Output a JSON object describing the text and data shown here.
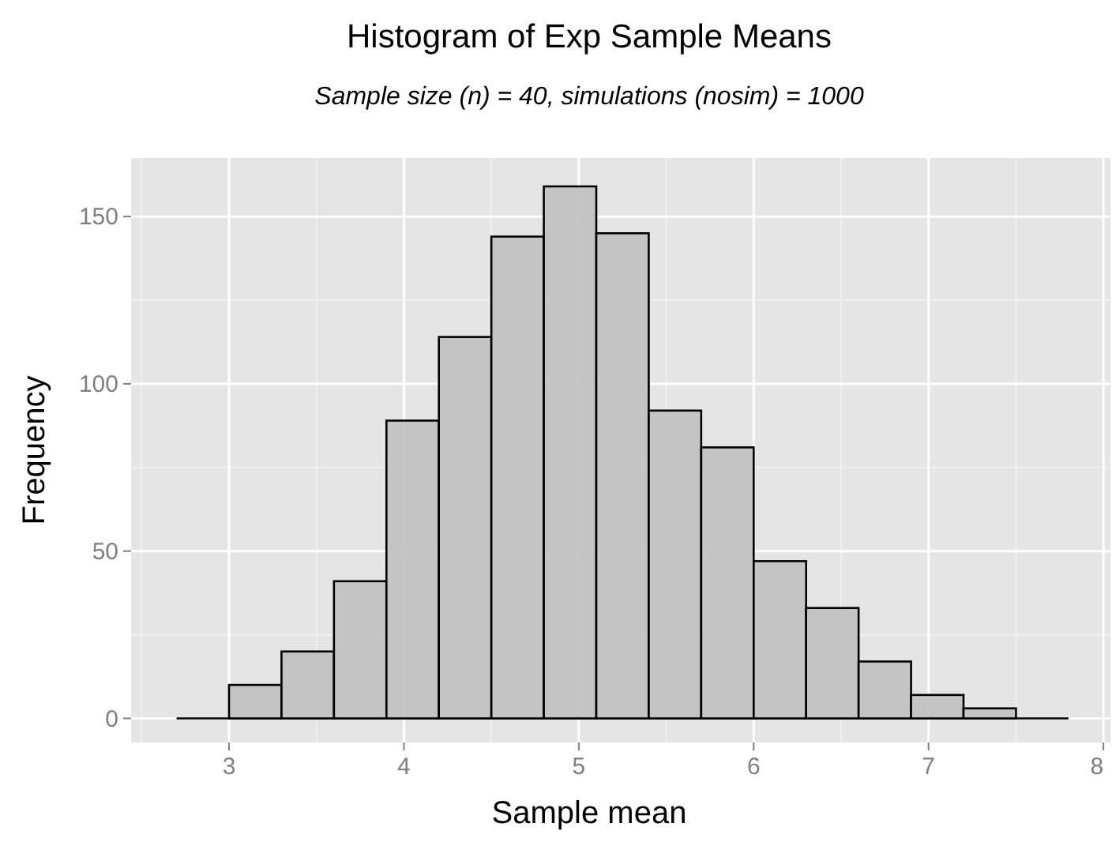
{
  "chart_data": {
    "type": "histogram",
    "title": "Histogram of Exp Sample Means",
    "subtitle": "Sample size (n) = 40, simulations (nosim) = 1000",
    "xlabel": "Sample mean",
    "ylabel": "Frequency",
    "bins": [
      2.7,
      3.0,
      3.3,
      3.6,
      3.9,
      4.2,
      4.5,
      4.8,
      5.1,
      5.4,
      5.7,
      6.0,
      6.3,
      6.6,
      6.9,
      7.2,
      7.5,
      7.8
    ],
    "values": [
      0,
      10,
      20,
      41,
      89,
      114,
      144,
      159,
      145,
      92,
      81,
      47,
      33,
      17,
      7,
      3,
      0
    ],
    "color": "#c0c0c0",
    "xlim": [
      2.44,
      8.04
    ],
    "ylim": [
      -7.2,
      167.5
    ],
    "xticks": [
      3,
      4,
      5,
      6,
      7,
      8
    ],
    "yticks": [
      0,
      50,
      100,
      150
    ],
    "grid": true
  }
}
